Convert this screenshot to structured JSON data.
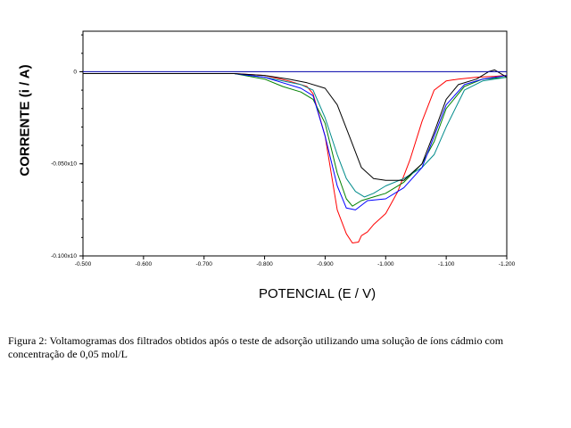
{
  "chart_data": {
    "type": "line",
    "xlabel": "POTENCIAL (E / V)",
    "ylabel": "CORRENTE  (i / A)",
    "x_ticks": [
      -0.5,
      -0.6,
      -0.7,
      -0.8,
      -0.9,
      -1.0,
      -1.1,
      -1.2
    ],
    "x_tick_labels": [
      "-0.500",
      "-0.600",
      "-0.700",
      "-0.800",
      "-0.900",
      "-1.000",
      "-1.100",
      "-1.200"
    ],
    "y_ticks": [
      0,
      -0.05,
      -0.1
    ],
    "y_tick_labels": [
      "0",
      "-0.050x10",
      "-0.100x10"
    ],
    "xlim": [
      -0.5,
      -1.2
    ],
    "ylim": [
      -0.1,
      0.022
    ],
    "grid": false,
    "series": [
      {
        "color": "#ff0000",
        "x": [
          -0.5,
          -0.75,
          -0.8,
          -0.84,
          -0.87,
          -0.88,
          -0.9,
          -0.92,
          -0.935,
          -0.945,
          -0.955,
          -0.96,
          -0.97,
          -0.98,
          -1.0,
          -1.02,
          -1.04,
          -1.06,
          -1.08,
          -1.1,
          -1.12,
          -1.15,
          -1.18,
          -1.2
        ],
        "y": [
          -0.001,
          -0.001,
          -0.002,
          -0.005,
          -0.008,
          -0.012,
          -0.035,
          -0.075,
          -0.088,
          -0.093,
          -0.0925,
          -0.089,
          -0.087,
          -0.083,
          -0.077,
          -0.065,
          -0.048,
          -0.027,
          -0.01,
          -0.005,
          -0.004,
          -0.003,
          -0.0025,
          -0.002
        ]
      },
      {
        "color": "#008000",
        "x": [
          -0.5,
          -0.75,
          -0.8,
          -0.83,
          -0.86,
          -0.88,
          -0.9,
          -0.92,
          -0.935,
          -0.945,
          -0.96,
          -0.98,
          -1.0,
          -1.03,
          -1.06,
          -1.08,
          -1.1,
          -1.13,
          -1.16,
          -1.2
        ],
        "y": [
          -0.001,
          -0.001,
          -0.004,
          -0.008,
          -0.011,
          -0.015,
          -0.028,
          -0.055,
          -0.069,
          -0.073,
          -0.07,
          -0.068,
          -0.066,
          -0.06,
          -0.05,
          -0.038,
          -0.02,
          -0.008,
          -0.004,
          -0.003
        ]
      },
      {
        "color": "#008b8b",
        "x": [
          -0.5,
          -0.75,
          -0.8,
          -0.83,
          -0.86,
          -0.88,
          -0.9,
          -0.92,
          -0.935,
          -0.95,
          -0.965,
          -0.98,
          -1.0,
          -1.03,
          -1.06,
          -1.08,
          -1.1,
          -1.13,
          -1.16,
          -1.2
        ],
        "y": [
          -0.001,
          -0.001,
          -0.003,
          -0.005,
          -0.007,
          -0.01,
          -0.025,
          -0.045,
          -0.058,
          -0.065,
          -0.068,
          -0.066,
          -0.062,
          -0.058,
          -0.052,
          -0.045,
          -0.03,
          -0.01,
          -0.005,
          -0.003
        ]
      },
      {
        "color": "#0000ff",
        "x": [
          -0.5,
          -0.75,
          -0.8,
          -0.83,
          -0.86,
          -0.88,
          -0.9,
          -0.92,
          -0.935,
          -0.95,
          -0.97,
          -1.0,
          -1.03,
          -1.06,
          -1.08,
          -1.1,
          -1.13,
          -1.16,
          -1.2
        ],
        "y": [
          -0.001,
          -0.001,
          -0.003,
          -0.006,
          -0.009,
          -0.013,
          -0.035,
          -0.062,
          -0.074,
          -0.075,
          -0.07,
          -0.069,
          -0.063,
          -0.052,
          -0.035,
          -0.018,
          -0.007,
          -0.004,
          -0.002
        ]
      },
      {
        "color": "#000000",
        "x": [
          -0.5,
          -0.75,
          -0.8,
          -0.84,
          -0.87,
          -0.9,
          -0.92,
          -0.94,
          -0.96,
          -0.98,
          -1.0,
          -1.03,
          -1.06,
          -1.08,
          -1.1,
          -1.12,
          -1.15,
          -1.17,
          -1.18,
          -1.2
        ],
        "y": [
          -0.001,
          -0.001,
          -0.002,
          -0.004,
          -0.006,
          -0.009,
          -0.018,
          -0.035,
          -0.052,
          -0.058,
          -0.059,
          -0.059,
          -0.05,
          -0.033,
          -0.015,
          -0.007,
          -0.004,
          0.0,
          0.001,
          -0.003
        ]
      },
      {
        "color": "#0000aa",
        "x": [
          -0.5,
          -1.2
        ],
        "y": [
          0,
          0
        ]
      }
    ]
  },
  "caption": "Figura 2: Voltamogramas dos filtrados obtidos após o teste de adsorção utilizando uma solução de íons cádmio com concentração de 0,05  mol/L"
}
